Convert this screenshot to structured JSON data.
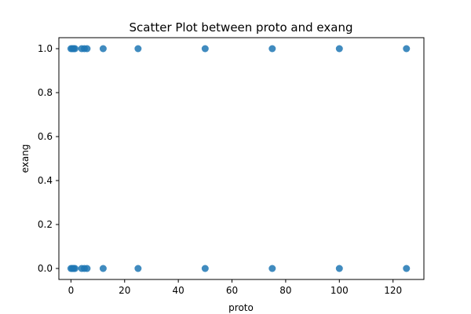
{
  "chart_data": {
    "type": "scatter",
    "title": "Scatter Plot between proto and exang",
    "xlabel": "proto",
    "ylabel": "exang",
    "xlim": [
      -4.5,
      131.5
    ],
    "ylim": [
      -0.05,
      1.05
    ],
    "xticks": [
      {
        "value": 0,
        "label": "0"
      },
      {
        "value": 20,
        "label": "20"
      },
      {
        "value": 40,
        "label": "40"
      },
      {
        "value": 60,
        "label": "60"
      },
      {
        "value": 80,
        "label": "80"
      },
      {
        "value": 100,
        "label": "100"
      },
      {
        "value": 120,
        "label": "120"
      }
    ],
    "yticks": [
      {
        "value": 0.0,
        "label": "0.0"
      },
      {
        "value": 0.2,
        "label": "0.2"
      },
      {
        "value": 0.4,
        "label": "0.4"
      },
      {
        "value": 0.6,
        "label": "0.6"
      },
      {
        "value": 0.8,
        "label": "0.8"
      },
      {
        "value": 1.0,
        "label": "1.0"
      }
    ],
    "grid": false,
    "legend": "none",
    "marker_color": "#1f77b4",
    "series": [
      {
        "points": [
          {
            "x": 0,
            "y": 1
          },
          {
            "x": 0.5,
            "y": 1
          },
          {
            "x": 1,
            "y": 1
          },
          {
            "x": 1.5,
            "y": 1
          },
          {
            "x": 4,
            "y": 1
          },
          {
            "x": 5,
            "y": 1
          },
          {
            "x": 6,
            "y": 1
          },
          {
            "x": 12,
            "y": 1
          },
          {
            "x": 25,
            "y": 1
          },
          {
            "x": 50,
            "y": 1
          },
          {
            "x": 75,
            "y": 1
          },
          {
            "x": 100,
            "y": 1
          },
          {
            "x": 125,
            "y": 1
          },
          {
            "x": 0,
            "y": 0
          },
          {
            "x": 0.5,
            "y": 0
          },
          {
            "x": 1,
            "y": 0
          },
          {
            "x": 1.5,
            "y": 0
          },
          {
            "x": 4,
            "y": 0
          },
          {
            "x": 5,
            "y": 0
          },
          {
            "x": 6,
            "y": 0
          },
          {
            "x": 12,
            "y": 0
          },
          {
            "x": 25,
            "y": 0
          },
          {
            "x": 50,
            "y": 0
          },
          {
            "x": 75,
            "y": 0
          },
          {
            "x": 100,
            "y": 0
          },
          {
            "x": 125,
            "y": 0
          }
        ]
      }
    ]
  }
}
